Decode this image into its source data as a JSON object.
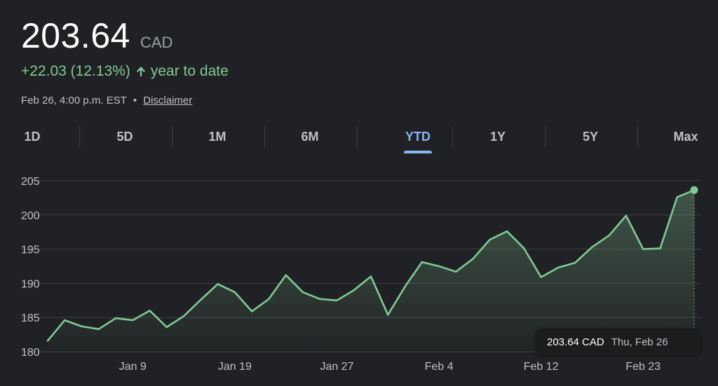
{
  "quote": {
    "price": "203.64",
    "currency": "CAD",
    "change": "+22.03 (12.13%)",
    "change_period": "year to date",
    "timestamp": "Feb 26, 4:00 p.m. EST",
    "separator": "•",
    "disclaimer": "Disclaimer",
    "up_color": "#81c995"
  },
  "tabs": [
    {
      "label": "1D",
      "active": false
    },
    {
      "label": "5D",
      "active": false
    },
    {
      "label": "1M",
      "active": false
    },
    {
      "label": "6M",
      "active": false
    },
    {
      "label": "YTD",
      "active": true
    },
    {
      "label": "1Y",
      "active": false
    },
    {
      "label": "5Y",
      "active": false
    },
    {
      "label": "Max",
      "active": false
    }
  ],
  "tooltip": {
    "price": "203.64 CAD",
    "date": "Thu, Feb 26"
  },
  "chart_data": {
    "type": "area",
    "title": "",
    "xlabel": "",
    "ylabel": "",
    "ylim": [
      180,
      205
    ],
    "y_ticks": [
      205,
      200,
      195,
      190,
      185,
      180
    ],
    "x_tick_labels": [
      "Jan 9",
      "Jan 19",
      "Jan 27",
      "Feb 4",
      "Feb 12",
      "Feb 23"
    ],
    "grid": true,
    "series": [
      {
        "values": [
          181.6,
          184.6,
          183.7,
          183.3,
          184.9,
          184.6,
          186.0,
          183.6,
          185.2,
          187.6,
          189.9,
          188.7,
          185.9,
          187.7,
          191.2,
          188.7,
          187.7,
          187.5,
          189.0,
          191.0,
          185.4,
          189.5,
          193.1,
          192.5,
          191.7,
          193.6,
          196.4,
          197.6,
          195.1,
          190.9,
          192.3,
          193.0,
          195.3,
          197.0,
          199.9,
          195.0,
          195.1,
          202.6,
          203.64
        ]
      }
    ],
    "line_color": "#81c995"
  }
}
